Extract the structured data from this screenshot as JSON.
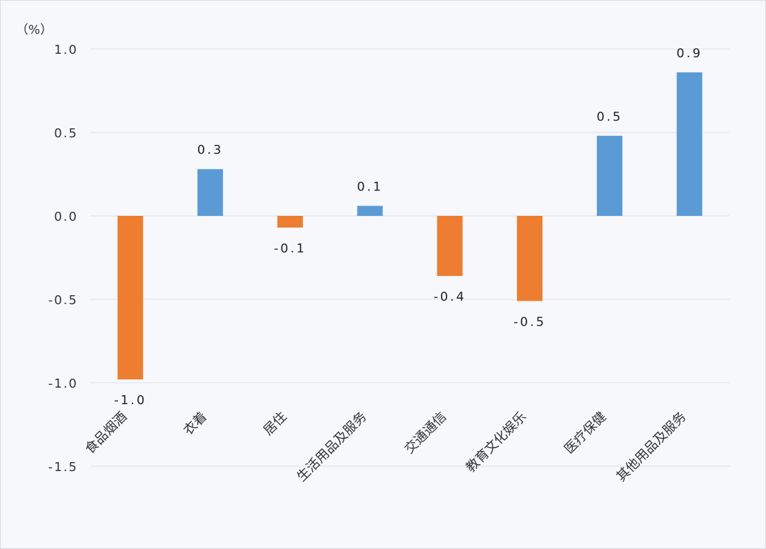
{
  "chart_data": {
    "type": "bar",
    "ylabel": "（%）",
    "ylim": [
      -1.5,
      1.0
    ],
    "yticks": [
      1.0,
      0.5,
      0.0,
      -0.5,
      -1.0,
      -1.5
    ],
    "ytick_labels": [
      "1.0",
      "0.5",
      "0.0",
      "-0.5",
      "-1.0",
      "-1.5"
    ],
    "grid": true,
    "legend": "none",
    "categories": [
      "食品烟酒",
      "衣着",
      "居住",
      "生活用品及服务",
      "交通通信",
      "教育文化娱乐",
      "医疗保健",
      "其他用品及服务"
    ],
    "values": [
      -0.98,
      0.28,
      -0.07,
      0.06,
      -0.36,
      -0.51,
      0.48,
      0.86
    ],
    "data_labels": [
      "-1.0",
      "0.3",
      "-0.1",
      "0.1",
      "-0.4",
      "-0.5",
      "0.5",
      "0.9"
    ],
    "colors": {
      "positive": "#5B9BD5",
      "negative": "#ED7D31",
      "grid": "#d9dee6"
    }
  }
}
